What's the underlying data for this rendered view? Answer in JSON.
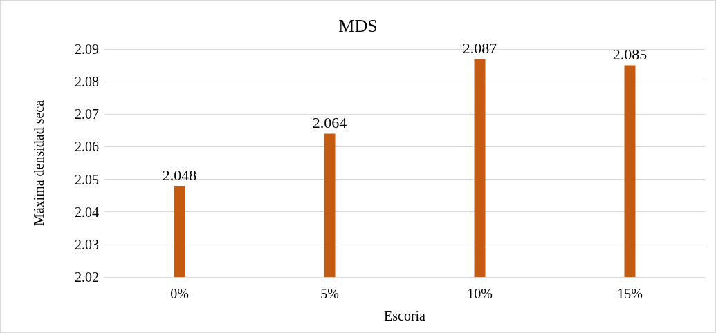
{
  "chart_data": {
    "type": "bar",
    "title": "MDS",
    "xlabel": "Escoria",
    "ylabel": "Máxima densidad seca",
    "categories": [
      "0%",
      "5%",
      "10%",
      "15%"
    ],
    "values": [
      2.048,
      2.064,
      2.087,
      2.085
    ],
    "color": "#c55a11",
    "ylim": [
      2.02,
      2.09
    ],
    "yticks": [
      2.02,
      2.03,
      2.04,
      2.05,
      2.06,
      2.07,
      2.08,
      2.09
    ],
    "grid": "y",
    "data_labels": true
  }
}
